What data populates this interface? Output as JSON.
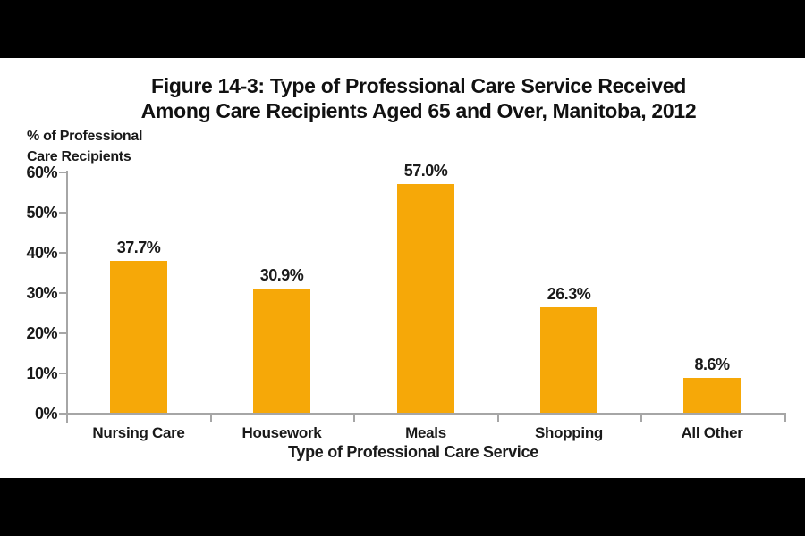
{
  "figure": {
    "title_line1": "Figure 14-3: Type of Professional Care Service Received",
    "title_line2": "Among Care Recipients Aged 65 and Over, Manitoba, 2012",
    "y_axis_label_line1": "% of Professional",
    "y_axis_label_line2": "Care Recipients",
    "x_axis_title": "Type of Professional Care Service"
  },
  "chart_data": {
    "type": "bar",
    "title": "Figure 14-3: Type of Professional Care Service Received Among Care Recipients Aged 65 and Over, Manitoba, 2012",
    "categories": [
      "Nursing Care",
      "Housework",
      "Meals",
      "Shopping",
      "All Other"
    ],
    "values": [
      37.7,
      30.9,
      57.0,
      26.3,
      8.6
    ],
    "data_labels": [
      "37.7%",
      "30.9%",
      "57.0%",
      "26.3%",
      "8.6%"
    ],
    "xlabel": "Type of Professional Care Service",
    "ylabel": "% of Professional Care Recipients",
    "ylim": [
      0,
      60
    ],
    "ytick_interval": 10,
    "ytick_labels": [
      "0%",
      "10%",
      "20%",
      "30%",
      "40%",
      "50%",
      "60%"
    ],
    "grid": false,
    "legend": false,
    "bar_color": "#F6A808",
    "axis_color": "#A6A6A6",
    "text_color": "#1A1A1A",
    "background_color": "#FFFFFF",
    "letterbox_color": "#000000"
  }
}
